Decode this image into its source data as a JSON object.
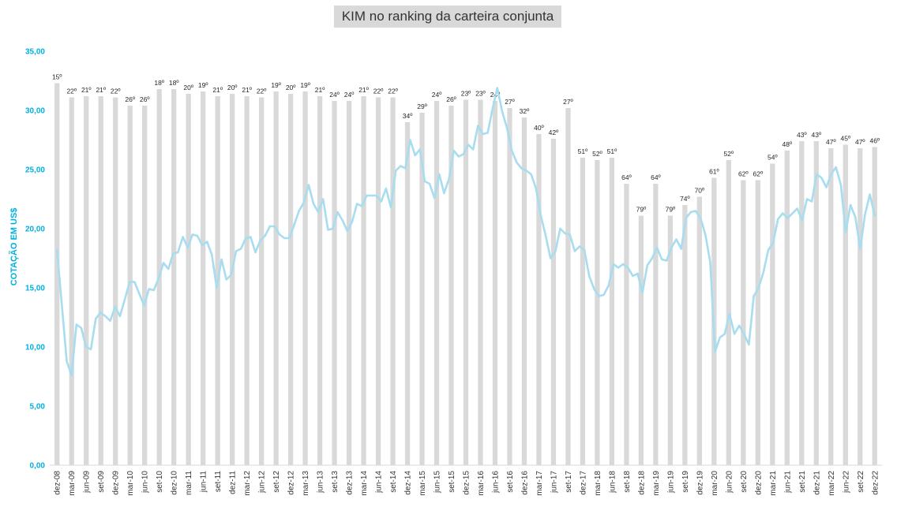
{
  "chart_data": {
    "type": "bar+line",
    "title": "KIM no ranking da carteira conjunta",
    "ylabel": "COTAÇÃO EM US$",
    "ylim": [
      0,
      35
    ],
    "yticks": [
      "0,00",
      "5,00",
      "10,00",
      "15,00",
      "20,00",
      "25,00",
      "30,00",
      "35,00"
    ],
    "xticks": [
      "dez-08",
      "mar-09",
      "jun-09",
      "set-09",
      "dez-09",
      "mar-10",
      "jun-10",
      "set-10",
      "dez-10",
      "mar-11",
      "jun-11",
      "set-11",
      "dez-11",
      "mar-12",
      "jun-12",
      "set-12",
      "dez-12",
      "mar-13",
      "jun-13",
      "set-13",
      "dez-13",
      "mar-14",
      "jun-14",
      "set-14",
      "dez-14",
      "mar-15",
      "jun-15",
      "set-15",
      "dez-15",
      "mar-16",
      "jun-16",
      "set-16",
      "dez-16",
      "mar-17",
      "jun-17",
      "set-17",
      "dez-17",
      "mar-18",
      "jun-18",
      "set-18",
      "dez-18",
      "mar-19",
      "jun-19",
      "set-19",
      "dez-19",
      "mar-20",
      "jun-20",
      "set-20",
      "dez-20",
      "mar-21",
      "jun-21",
      "set-21",
      "dez-21",
      "mar-22",
      "jun-22",
      "set-22",
      "dez-22"
    ],
    "series": [
      {
        "type": "bar",
        "ranks": [
          "15º",
          "22º",
          "21º",
          "21º",
          "22º",
          "26º",
          "26º",
          "18º",
          "18º",
          "20º",
          "19º",
          "21º",
          "20º",
          "21º",
          "22º",
          "19º",
          "20º",
          "19º",
          "21º",
          "24º",
          "24º",
          "21º",
          "22º",
          "22º",
          "34º",
          "29º",
          "24º",
          "26º",
          "23º",
          "23º",
          "24º",
          "27º",
          "32º",
          "40º",
          "42º",
          "27º",
          "51º",
          "52º",
          "51º",
          "64º",
          "79º",
          "64º",
          "79º",
          "74º",
          "70º",
          "61º",
          "52º",
          "62º",
          "62º",
          "54º",
          "48º",
          "43º",
          "43º",
          "47º",
          "45º",
          "47º",
          "46º"
        ],
        "values": [
          32.3,
          31.1,
          31.2,
          31.2,
          31.1,
          30.4,
          30.4,
          31.8,
          31.8,
          31.4,
          31.6,
          31.2,
          31.4,
          31.2,
          31.1,
          31.6,
          31.4,
          31.6,
          31.2,
          30.8,
          30.8,
          31.2,
          31.1,
          31.1,
          29.0,
          29.8,
          30.8,
          30.4,
          30.9,
          30.9,
          30.8,
          30.2,
          29.4,
          28.0,
          27.6,
          30.2,
          26.0,
          25.8,
          26.0,
          23.8,
          21.1,
          23.8,
          21.1,
          22.0,
          22.7,
          24.3,
          25.8,
          24.1,
          24.1,
          25.5,
          26.6,
          27.4,
          27.4,
          26.8,
          27.1,
          26.8,
          26.9
        ]
      },
      {
        "type": "line",
        "color": "#a8dcef",
        "values": [
          18.2,
          13.5,
          8.8,
          7.6,
          11.9,
          11.6,
          10.0,
          9.8,
          12.4,
          12.9,
          12.6,
          12.2,
          13.4,
          12.6,
          14.0,
          15.5,
          15.5,
          14.5,
          13.5,
          14.9,
          14.8,
          15.8,
          17.1,
          16.6,
          17.9,
          18.0,
          19.3,
          18.4,
          19.5,
          19.4,
          18.6,
          18.9,
          17.8,
          15.0,
          17.4,
          15.7,
          16.1,
          18.1,
          18.3,
          19.2,
          19.3,
          18.0,
          19.0,
          19.4,
          20.2,
          20.2,
          19.5,
          19.2,
          19.2,
          20.3,
          21.5,
          22.2,
          23.7,
          22.1,
          21.4,
          22.5,
          19.9,
          20.0,
          21.4,
          20.7,
          19.8,
          20.6,
          22.1,
          21.9,
          22.8,
          22.8,
          22.8,
          22.3,
          23.4,
          21.8,
          24.9,
          25.3,
          25.1,
          27.5,
          26.2,
          26.7,
          24.0,
          23.8,
          22.6,
          24.6,
          23.0,
          24.2,
          26.6,
          26.1,
          26.3,
          27.1,
          26.7,
          28.7,
          28.0,
          28.1,
          30.1,
          31.9,
          29.9,
          28.5,
          26.6,
          25.6,
          25.1,
          24.9,
          24.6,
          23.4,
          21.1,
          19.4,
          17.5,
          18.1,
          20.0,
          19.6,
          19.5,
          18.1,
          18.5,
          18.2,
          16.0,
          14.9,
          14.3,
          14.4,
          15.2,
          17.0,
          16.7,
          17.0,
          16.7,
          16.0,
          16.2,
          14.6,
          16.9,
          17.5,
          18.4,
          17.4,
          17.3,
          18.4,
          19.1,
          18.3,
          20.9,
          21.4,
          21.5,
          20.9,
          19.5,
          17.2,
          9.6,
          10.8,
          11.1,
          12.8,
          11.1,
          11.8,
          11.1,
          10.2,
          14.3,
          15.0,
          16.3,
          18.2,
          18.8,
          20.8,
          21.3,
          20.9,
          21.3,
          21.7,
          20.7,
          22.5,
          22.3,
          24.6,
          24.3,
          23.5,
          24.6,
          25.2,
          23.7,
          19.7,
          22.0,
          21.0,
          18.3,
          21.2,
          22.9,
          21.1
        ]
      }
    ],
    "grid": false,
    "legend": "none"
  }
}
